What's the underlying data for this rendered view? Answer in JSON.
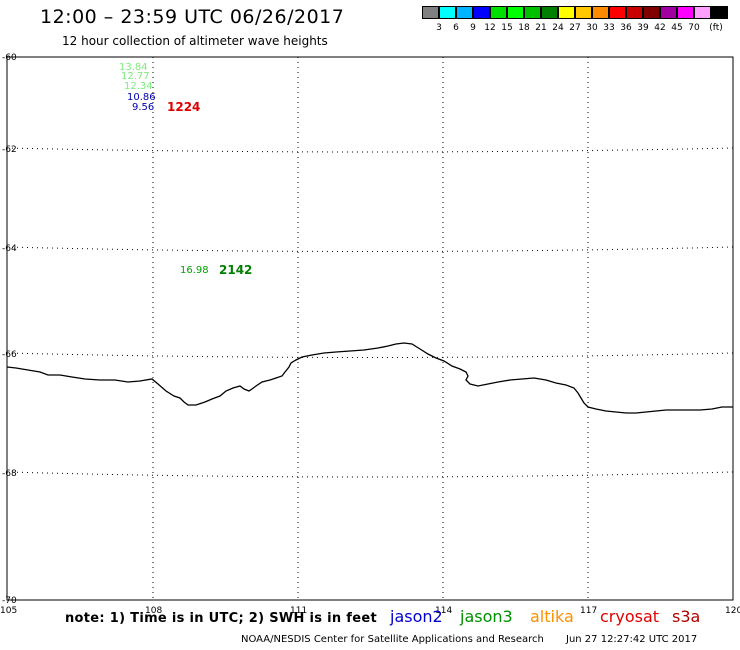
{
  "header": {
    "title": "12:00 – 23:59 UTC 06/26/2017",
    "subtitle": "12 hour collection of altimeter wave heights"
  },
  "legend": {
    "swatches": [
      {
        "color": "#808080",
        "label": ""
      },
      {
        "color": "#00ffff",
        "label": "3"
      },
      {
        "color": "#00b4ff",
        "label": "6"
      },
      {
        "color": "#0000ff",
        "label": "9"
      },
      {
        "color": "#00e000",
        "label": "12"
      },
      {
        "color": "#00ff00",
        "label": "15"
      },
      {
        "color": "#00c000",
        "label": "18"
      },
      {
        "color": "#008000",
        "label": "21"
      },
      {
        "color": "#ffff00",
        "label": "24"
      },
      {
        "color": "#ffc800",
        "label": "27"
      },
      {
        "color": "#ff8c00",
        "label": "30"
      },
      {
        "color": "#ff0000",
        "label": "33"
      },
      {
        "color": "#c80000",
        "label": "36"
      },
      {
        "color": "#800000",
        "label": "39"
      },
      {
        "color": "#a000a0",
        "label": "42"
      },
      {
        "color": "#ff00ff",
        "label": "45"
      },
      {
        "color": "#ffa0ff",
        "label": "70"
      },
      {
        "color": "#000000",
        "label": ""
      }
    ],
    "unit": "(ft)"
  },
  "axes": {
    "lat_labels": [
      "-60",
      "-62",
      "-64",
      "-66",
      "-68",
      "-70"
    ],
    "lon_labels": [
      "105",
      "108",
      "111",
      "114",
      "117",
      "120"
    ]
  },
  "observations": [
    {
      "value": "13.84",
      "color": "#7cec7c"
    },
    {
      "value": "12.77",
      "color": "#7cec7c"
    },
    {
      "value": "12.34",
      "color": "#7cec7c"
    },
    {
      "value": "10.86",
      "color": "#0000b0"
    },
    {
      "value": "9.56",
      "color": "#0000b0"
    },
    {
      "value": "16.98",
      "color": "#00a000"
    }
  ],
  "times": [
    {
      "value": "1224",
      "color": "#e00000"
    },
    {
      "value": "2142",
      "color": "#008000"
    }
  ],
  "note": "note: 1) Time is in UTC; 2) SWH is in feet",
  "satellites": [
    {
      "name": "jason2",
      "color": "#0000d0"
    },
    {
      "name": "jason3",
      "color": "#009000"
    },
    {
      "name": "altika",
      "color": "#ff9000"
    },
    {
      "name": "cryosat",
      "color": "#e00000"
    },
    {
      "name": "s3a",
      "color": "#b00000"
    }
  ],
  "footer": {
    "credit": "NOAA/NESDIS Center for Satellite Applications and Research",
    "timestamp": "Jun 27 12:27:42 UTC 2017"
  }
}
